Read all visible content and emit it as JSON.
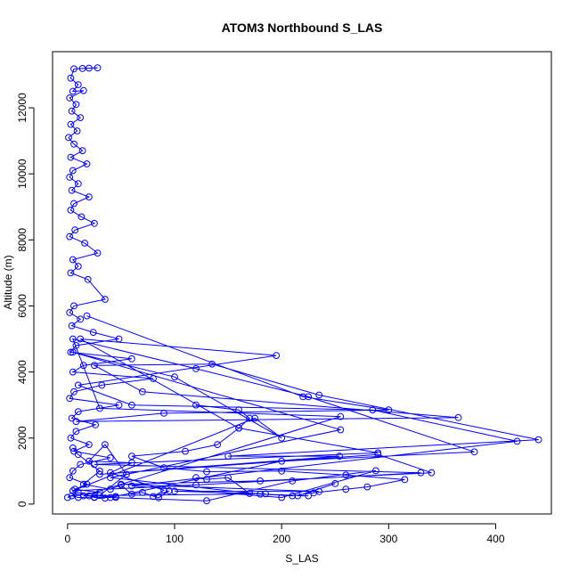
{
  "chart_data": {
    "type": "line",
    "title": "ATOM3 Northbound S_LAS",
    "xlabel": "S_LAS",
    "ylabel": "Altitude (m)",
    "xlim": [
      -14,
      452
    ],
    "ylim": [
      -300,
      13700
    ],
    "x_ticks": [
      0,
      100,
      200,
      300,
      400
    ],
    "y_ticks": [
      0,
      2000,
      4000,
      6000,
      8000,
      10000,
      12000
    ],
    "grid": false,
    "legend": "none",
    "series": [
      {
        "color": "#0000ff",
        "marker": "open-circle",
        "points": [
          [
            20,
            13200
          ],
          [
            28,
            13210
          ],
          [
            14,
            13190
          ],
          [
            6,
            13180
          ],
          [
            3,
            12900
          ],
          [
            10,
            12700
          ],
          [
            5,
            12500
          ],
          [
            15,
            12520
          ],
          [
            2,
            12300
          ],
          [
            8,
            12100
          ],
          [
            4,
            11900
          ],
          [
            12,
            11700
          ],
          [
            3,
            11500
          ],
          [
            9,
            11300
          ],
          [
            1,
            11100
          ],
          [
            6,
            10900
          ],
          [
            14,
            10700
          ],
          [
            3,
            10500
          ],
          [
            18,
            10300
          ],
          [
            5,
            10100
          ],
          [
            2,
            9900
          ],
          [
            10,
            9700
          ],
          [
            4,
            9500
          ],
          [
            20,
            9300
          ],
          [
            6,
            9100
          ],
          [
            3,
            8900
          ],
          [
            13,
            8700
          ],
          [
            25,
            8500
          ],
          [
            7,
            8300
          ],
          [
            2,
            8100
          ],
          [
            16,
            7900
          ],
          [
            28,
            7600
          ],
          [
            5,
            7400
          ],
          [
            10,
            7200
          ],
          [
            3,
            7000
          ],
          [
            19,
            6800
          ],
          [
            35,
            6200
          ],
          [
            6,
            6000
          ],
          [
            2,
            5800
          ],
          [
            12,
            5600
          ],
          [
            4,
            5400
          ],
          [
            24,
            5200
          ],
          [
            48,
            5000
          ],
          [
            8,
            4800
          ],
          [
            3,
            4600
          ],
          [
            60,
            4400
          ],
          [
            15,
            4200
          ],
          [
            5,
            4000
          ],
          [
            80,
            3800
          ],
          [
            32,
            3600
          ],
          [
            6,
            3400
          ],
          [
            2,
            3200
          ],
          [
            48,
            3000
          ],
          [
            10,
            2800
          ],
          [
            4,
            2600
          ],
          [
            26,
            2400
          ],
          [
            8,
            2200
          ],
          [
            3,
            2000
          ],
          [
            20,
            1800
          ],
          [
            6,
            1600
          ],
          [
            40,
            1400
          ],
          [
            12,
            1200
          ],
          [
            5,
            1000
          ],
          [
            2,
            800
          ],
          [
            18,
            600
          ],
          [
            7,
            450
          ],
          [
            30,
            350
          ],
          [
            4,
            250
          ],
          [
            10,
            200
          ],
          [
            25,
            210
          ],
          [
            45,
            230
          ]
        ]
      },
      {
        "color": "#0000ff",
        "marker": "open-circle",
        "points": [
          [
            18,
            5700
          ],
          [
            220,
            3250
          ],
          [
            300,
            2850
          ],
          [
            90,
            2750
          ],
          [
            8,
            2500
          ],
          [
            365,
            2620
          ],
          [
            70,
            3400
          ],
          [
            25,
            4200
          ],
          [
            135,
            4240
          ],
          [
            235,
            3300
          ],
          [
            440,
            1950
          ],
          [
            150,
            1450
          ],
          [
            254,
            1450
          ],
          [
            30,
            900
          ],
          [
            290,
            1500
          ],
          [
            340,
            950
          ],
          [
            180,
            700
          ],
          [
            50,
            600
          ],
          [
            235,
            380
          ],
          [
            100,
            390
          ],
          [
            185,
            310
          ],
          [
            15,
            250
          ],
          [
            255,
            2650
          ],
          [
            30,
            2900
          ],
          [
            5,
            5000
          ],
          [
            120,
            4100
          ],
          [
            225,
            3250
          ],
          [
            380,
            1580
          ],
          [
            200,
            1300
          ],
          [
            40,
            200
          ],
          [
            130,
            100
          ],
          [
            210,
            700
          ],
          [
            288,
            1010
          ],
          [
            200,
            200
          ],
          [
            60,
            550
          ],
          [
            420,
            1900
          ],
          [
            285,
            2850
          ],
          [
            60,
            3000
          ],
          [
            10,
            3600
          ],
          [
            195,
            4500
          ],
          [
            12,
            5000
          ],
          [
            160,
            2300
          ],
          [
            290,
            1550
          ],
          [
            25,
            1200
          ],
          [
            330,
            950
          ],
          [
            120,
            580
          ],
          [
            5,
            400
          ],
          [
            175,
            2600
          ],
          [
            200,
            2000
          ],
          [
            100,
            3850
          ],
          [
            5,
            4600
          ],
          [
            255,
            2250
          ],
          [
            40,
            800
          ],
          [
            180,
            300
          ],
          [
            225,
            250
          ],
          [
            215,
            250
          ],
          [
            250,
            620
          ]
        ]
      },
      {
        "color": "#0000ff",
        "marker": "open-circle",
        "points": [
          [
            0,
            200
          ],
          [
            10,
            350
          ],
          [
            20,
            250
          ],
          [
            35,
            180
          ],
          [
            25,
            200
          ],
          [
            45,
            200
          ],
          [
            30,
            260
          ],
          [
            55,
            900
          ],
          [
            35,
            1800
          ],
          [
            20,
            1300
          ],
          [
            60,
            1250
          ],
          [
            40,
            950
          ],
          [
            90,
            420
          ],
          [
            80,
            230
          ],
          [
            95,
            400
          ],
          [
            85,
            190
          ],
          [
            70,
            350
          ],
          [
            60,
            300
          ],
          [
            50,
            580
          ],
          [
            40,
            450
          ],
          [
            15,
            600
          ],
          [
            30,
            1000
          ],
          [
            10,
            1500
          ],
          [
            5,
            1700
          ]
        ]
      },
      {
        "color": "#0000ff",
        "marker": "open-circle",
        "points": [
          [
            120,
            800
          ],
          [
            130,
            750
          ],
          [
            150,
            800
          ],
          [
            170,
            320
          ],
          [
            210,
            250
          ],
          [
            230,
            340
          ],
          [
            260,
            450
          ],
          [
            280,
            520
          ],
          [
            315,
            740
          ],
          [
            260,
            880
          ],
          [
            200,
            1000
          ],
          [
            130,
            980
          ],
          [
            90,
            1100
          ],
          [
            60,
            1450
          ],
          [
            110,
            1600
          ],
          [
            140,
            1800
          ],
          [
            160,
            2300
          ],
          [
            170,
            2600
          ],
          [
            160,
            2850
          ],
          [
            120,
            3000
          ]
        ]
      }
    ]
  }
}
